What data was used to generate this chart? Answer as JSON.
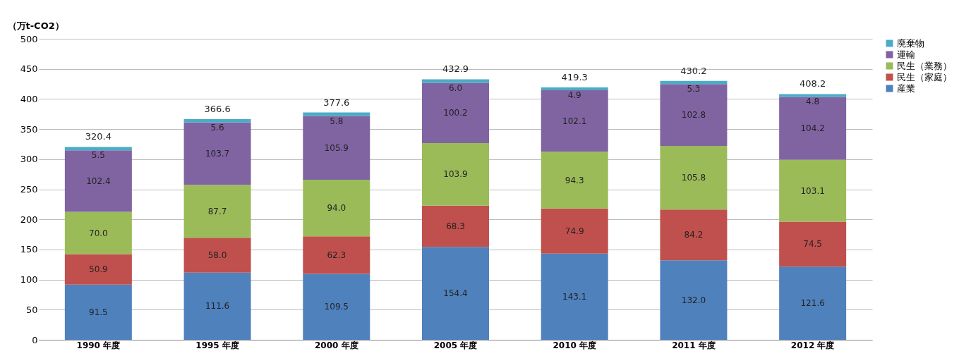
{
  "chart_data": {
    "type": "bar",
    "stacked": true,
    "ylabel": "（万t-CO2）",
    "categories": [
      "1990 年度",
      "1995 年度",
      "2000 年度",
      "2005 年度",
      "2010 年度",
      "2011 年度",
      "2012 年度"
    ],
    "series": [
      {
        "name": "産業",
        "color": "#4f81bd",
        "values": [
          91.5,
          111.6,
          109.5,
          154.4,
          143.1,
          132.0,
          121.6
        ],
        "value_labels": [
          "91.5",
          "111.6",
          "109.5",
          "154.4",
          "143.1",
          "132.0",
          "121.6"
        ]
      },
      {
        "name": "民生（家庭）",
        "color": "#c0504d",
        "values": [
          50.9,
          58.0,
          62.3,
          68.3,
          74.9,
          84.2,
          74.5
        ],
        "value_labels": [
          "50.9",
          "58.0",
          "62.3",
          "68.3",
          "74.9",
          "84.2",
          "74.5"
        ]
      },
      {
        "name": "民生（業務）",
        "color": "#9bbb59",
        "values": [
          70.0,
          87.7,
          94.0,
          103.9,
          94.3,
          105.8,
          103.1
        ],
        "value_labels": [
          "70.0",
          "87.7",
          "94.0",
          "103.9",
          "94.3",
          "105.8",
          "103.1"
        ]
      },
      {
        "name": "運輸",
        "color": "#8064a2",
        "values": [
          102.4,
          103.7,
          105.9,
          100.2,
          102.1,
          102.8,
          104.2
        ],
        "value_labels": [
          "102.4",
          "103.7",
          "105.9",
          "100.2",
          "102.1",
          "102.8",
          "104.2"
        ]
      },
      {
        "name": "廃棄物",
        "color": "#4bacc6",
        "values": [
          5.5,
          5.6,
          5.8,
          6.0,
          4.9,
          5.3,
          4.8
        ],
        "value_labels": [
          "5.5",
          "5.6",
          "5.8",
          "6.0",
          "4.9",
          "5.3",
          "4.8"
        ]
      }
    ],
    "totals": [
      "320.4",
      "366.6",
      "377.6",
      "432.9",
      "419.3",
      "430.2",
      "408.2"
    ],
    "ylim": [
      0,
      500
    ],
    "yticks": [
      0,
      50,
      100,
      150,
      200,
      250,
      300,
      350,
      400,
      450,
      500
    ],
    "grid": "y",
    "legend": "right"
  }
}
